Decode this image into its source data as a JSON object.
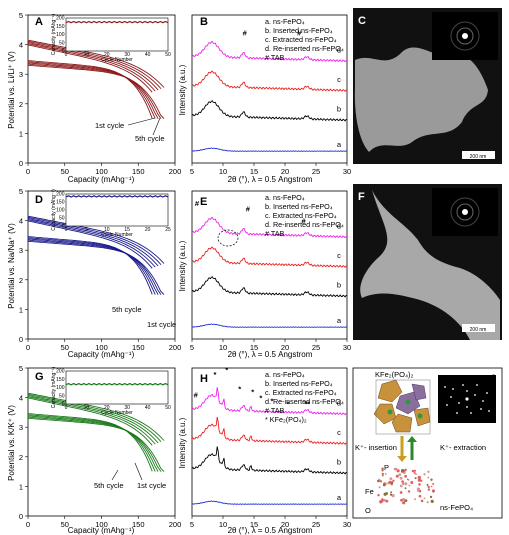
{
  "panels": {
    "A": {
      "letter": "A",
      "ylabel": "Potential vs. Li/Li⁺ (V)",
      "xlabel": "Capacity (mAhg⁻¹)",
      "xticks": [
        "0",
        "50",
        "100",
        "150",
        "200"
      ],
      "yticks": [
        "0",
        "1",
        "2",
        "3",
        "4",
        "5"
      ],
      "xlim": [
        0,
        200
      ],
      "ylim": [
        0,
        5
      ],
      "color": "#8b1a1a",
      "cycle_labels": [
        "1st cycle",
        "5th cycle"
      ],
      "inset": {
        "ylabel": "Capacity (mAhg⁻¹)",
        "xlabel": "Cycle Number",
        "xticks": [
          "0",
          "10",
          "20",
          "30",
          "40",
          "50"
        ],
        "yticks": [
          "0",
          "50",
          "100",
          "150",
          "200"
        ],
        "xlim": [
          0,
          50
        ],
        "ylim": [
          0,
          200
        ],
        "value": 175
      }
    },
    "D": {
      "letter": "D",
      "ylabel": "Potential vs. Na/Na⁺ (V)",
      "xlabel": "Capacity (mAhg⁻¹)",
      "xticks": [
        "0",
        "50",
        "100",
        "150",
        "200"
      ],
      "yticks": [
        "0",
        "1",
        "2",
        "3",
        "4",
        "5"
      ],
      "xlim": [
        0,
        200
      ],
      "ylim": [
        0,
        5
      ],
      "color": "#1a1a8b",
      "cycle_labels": [
        "5th cycle",
        "1st cycle"
      ],
      "inset": {
        "ylabel": "Capacity (mAhg⁻¹)",
        "xlabel": "Cycle Number",
        "xticks": [
          "0",
          "5",
          "10",
          "15",
          "20",
          "25"
        ],
        "yticks": [
          "0",
          "50",
          "100",
          "150",
          "200"
        ],
        "xlim": [
          0,
          25
        ],
        "ylim": [
          0,
          200
        ],
        "value": 185
      }
    },
    "G": {
      "letter": "G",
      "ylabel": "Potential vs. K/K⁺ (V)",
      "xlabel": "Capacity (mAhg⁻¹)",
      "xticks": [
        "0",
        "50",
        "100",
        "150",
        "200"
      ],
      "yticks": [
        "0",
        "1",
        "2",
        "3",
        "4",
        "5"
      ],
      "xlim": [
        0,
        200
      ],
      "ylim": [
        0,
        5
      ],
      "color": "#1a7a1a",
      "cycle_labels": [
        "5th cycle",
        "1st cycle"
      ],
      "inset": {
        "ylabel": "Capacity (mAhg⁻¹)",
        "xlabel": "Cycle Number",
        "xticks": [
          "0",
          "10",
          "20",
          "30",
          "40",
          "50"
        ],
        "yticks": [
          "0",
          "50",
          "100",
          "150",
          "200"
        ],
        "xlim": [
          0,
          50
        ],
        "ylim": [
          0,
          200
        ],
        "value": 120
      }
    },
    "B": {
      "letter": "B",
      "ylabel": "Intensity (a.u.)",
      "xlabel": "2θ (°), λ = 0.5 Angstrom",
      "xticks": [
        "5",
        "10",
        "15",
        "20",
        "25",
        "30"
      ],
      "xlim": [
        5,
        30
      ],
      "legend": [
        "a. ns-FePO₄",
        "b. Inserted ns-FePO₄",
        "c. Extracted ns-FePO₄",
        "d. Re-inserted ns-FePO₄",
        "# TAB"
      ],
      "curve_labels": [
        "d",
        "c",
        "b",
        "a"
      ],
      "marks": [
        "#",
        "#"
      ]
    },
    "E": {
      "letter": "E",
      "ylabel": "Intensity (a.u.)",
      "xlabel": "2θ (°), λ = 0.5 Angstrom",
      "xticks": [
        "5",
        "10",
        "15",
        "20",
        "25",
        "30"
      ],
      "xlim": [
        5,
        30
      ],
      "legend": [
        "a. ns-FePO₄",
        "b. Inserted ns-FePO₄",
        "c. Extracted ns-FePO₄",
        "d. Re-inserted ns-FePO₄",
        "# TAB"
      ],
      "curve_labels": [
        "d",
        "c",
        "b",
        "a"
      ],
      "marks": [
        "#",
        "#",
        "#"
      ]
    },
    "H": {
      "letter": "H",
      "ylabel": "Intensity (a.u.)",
      "xlabel": "2θ (°), λ = 0.5 Angstrom",
      "xticks": [
        "5",
        "10",
        "15",
        "20",
        "25",
        "30"
      ],
      "xlim": [
        5,
        30
      ],
      "legend": [
        "a. ns-FePO₄",
        "b. Inserted ns-FePO₄",
        "c. Extracted ns-FePO₄",
        "d. Re-inserted ns-FePO₄",
        "# TAB",
        "* KFe₂(PO₄)₂"
      ],
      "curve_labels": [
        "d",
        "c",
        "b",
        "a"
      ],
      "marks": [
        "#",
        "*",
        "*",
        "*",
        "*",
        "*",
        "*",
        "*",
        "**"
      ]
    },
    "C": {
      "letter": "C",
      "scale": "200 nm"
    },
    "F": {
      "letter": "F",
      "scale": "200 nm"
    },
    "I": {
      "letter": "I",
      "top_label": "KFe₂(PO₄)₂",
      "insertion": "K⁺- insertion",
      "extraction": "K⁺- extraction",
      "atom_p": "P",
      "atom_fe": "Fe",
      "atom_o": "O",
      "bottom_label": "ns-FePO₄"
    }
  },
  "colors": {
    "a": "#2233dd",
    "b": "#000000",
    "c": "#ee2222",
    "d": "#ee22ee"
  }
}
